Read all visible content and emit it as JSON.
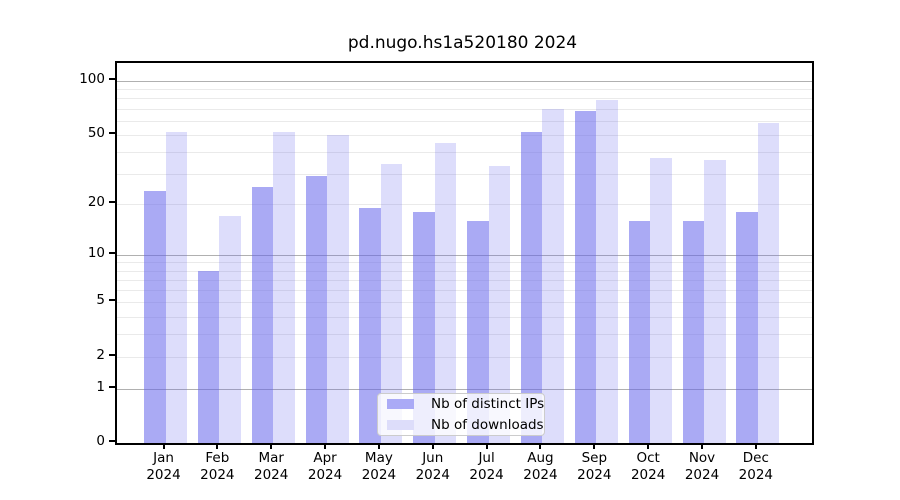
{
  "title": "pd.nugo.hs1a520180 2024",
  "chart_data": {
    "type": "bar",
    "title": "pd.nugo.hs1a520180 2024",
    "categories": [
      "Jan 2024",
      "Feb 2024",
      "Mar 2024",
      "Apr 2024",
      "May 2024",
      "Jun 2024",
      "Jul 2024",
      "Aug 2024",
      "Sep 2024",
      "Oct 2024",
      "Nov 2024",
      "Dec 2024"
    ],
    "months": [
      "Jan",
      "Feb",
      "Mar",
      "Apr",
      "May",
      "Jun",
      "Jul",
      "Aug",
      "Sep",
      "Oct",
      "Nov",
      "Dec"
    ],
    "year_label": "2024",
    "series": [
      {
        "name": "Nb of distinct IPs",
        "color": "rgba(100,100,235,0.55)",
        "swatch": "#aaaaf6",
        "values": [
          24,
          8,
          25,
          29,
          19,
          18,
          16,
          52,
          68,
          16,
          16,
          18
        ]
      },
      {
        "name": "Nb of downloads",
        "color": "rgba(100,100,235,0.22)",
        "swatch": "#ddddfa",
        "values": [
          52,
          17,
          52,
          50,
          34,
          45,
          33,
          70,
          78,
          37,
          36,
          58
        ]
      }
    ],
    "yscale": "log1p",
    "y_tick_labels": [
      100,
      50,
      20,
      10,
      5,
      2,
      1,
      0
    ],
    "y_major_gridlines": [
      1,
      10,
      100
    ],
    "y_minor_gridlines": [
      2,
      3,
      4,
      5,
      6,
      7,
      8,
      9,
      20,
      30,
      40,
      50,
      60,
      70,
      80,
      90
    ],
    "ylim": [
      0,
      115
    ],
    "grid": "on",
    "legend_position": "lower center",
    "colors": {
      "major_grid": "#b0b0b0",
      "minor_grid": "#eaeaea",
      "axis": "#000000"
    }
  }
}
